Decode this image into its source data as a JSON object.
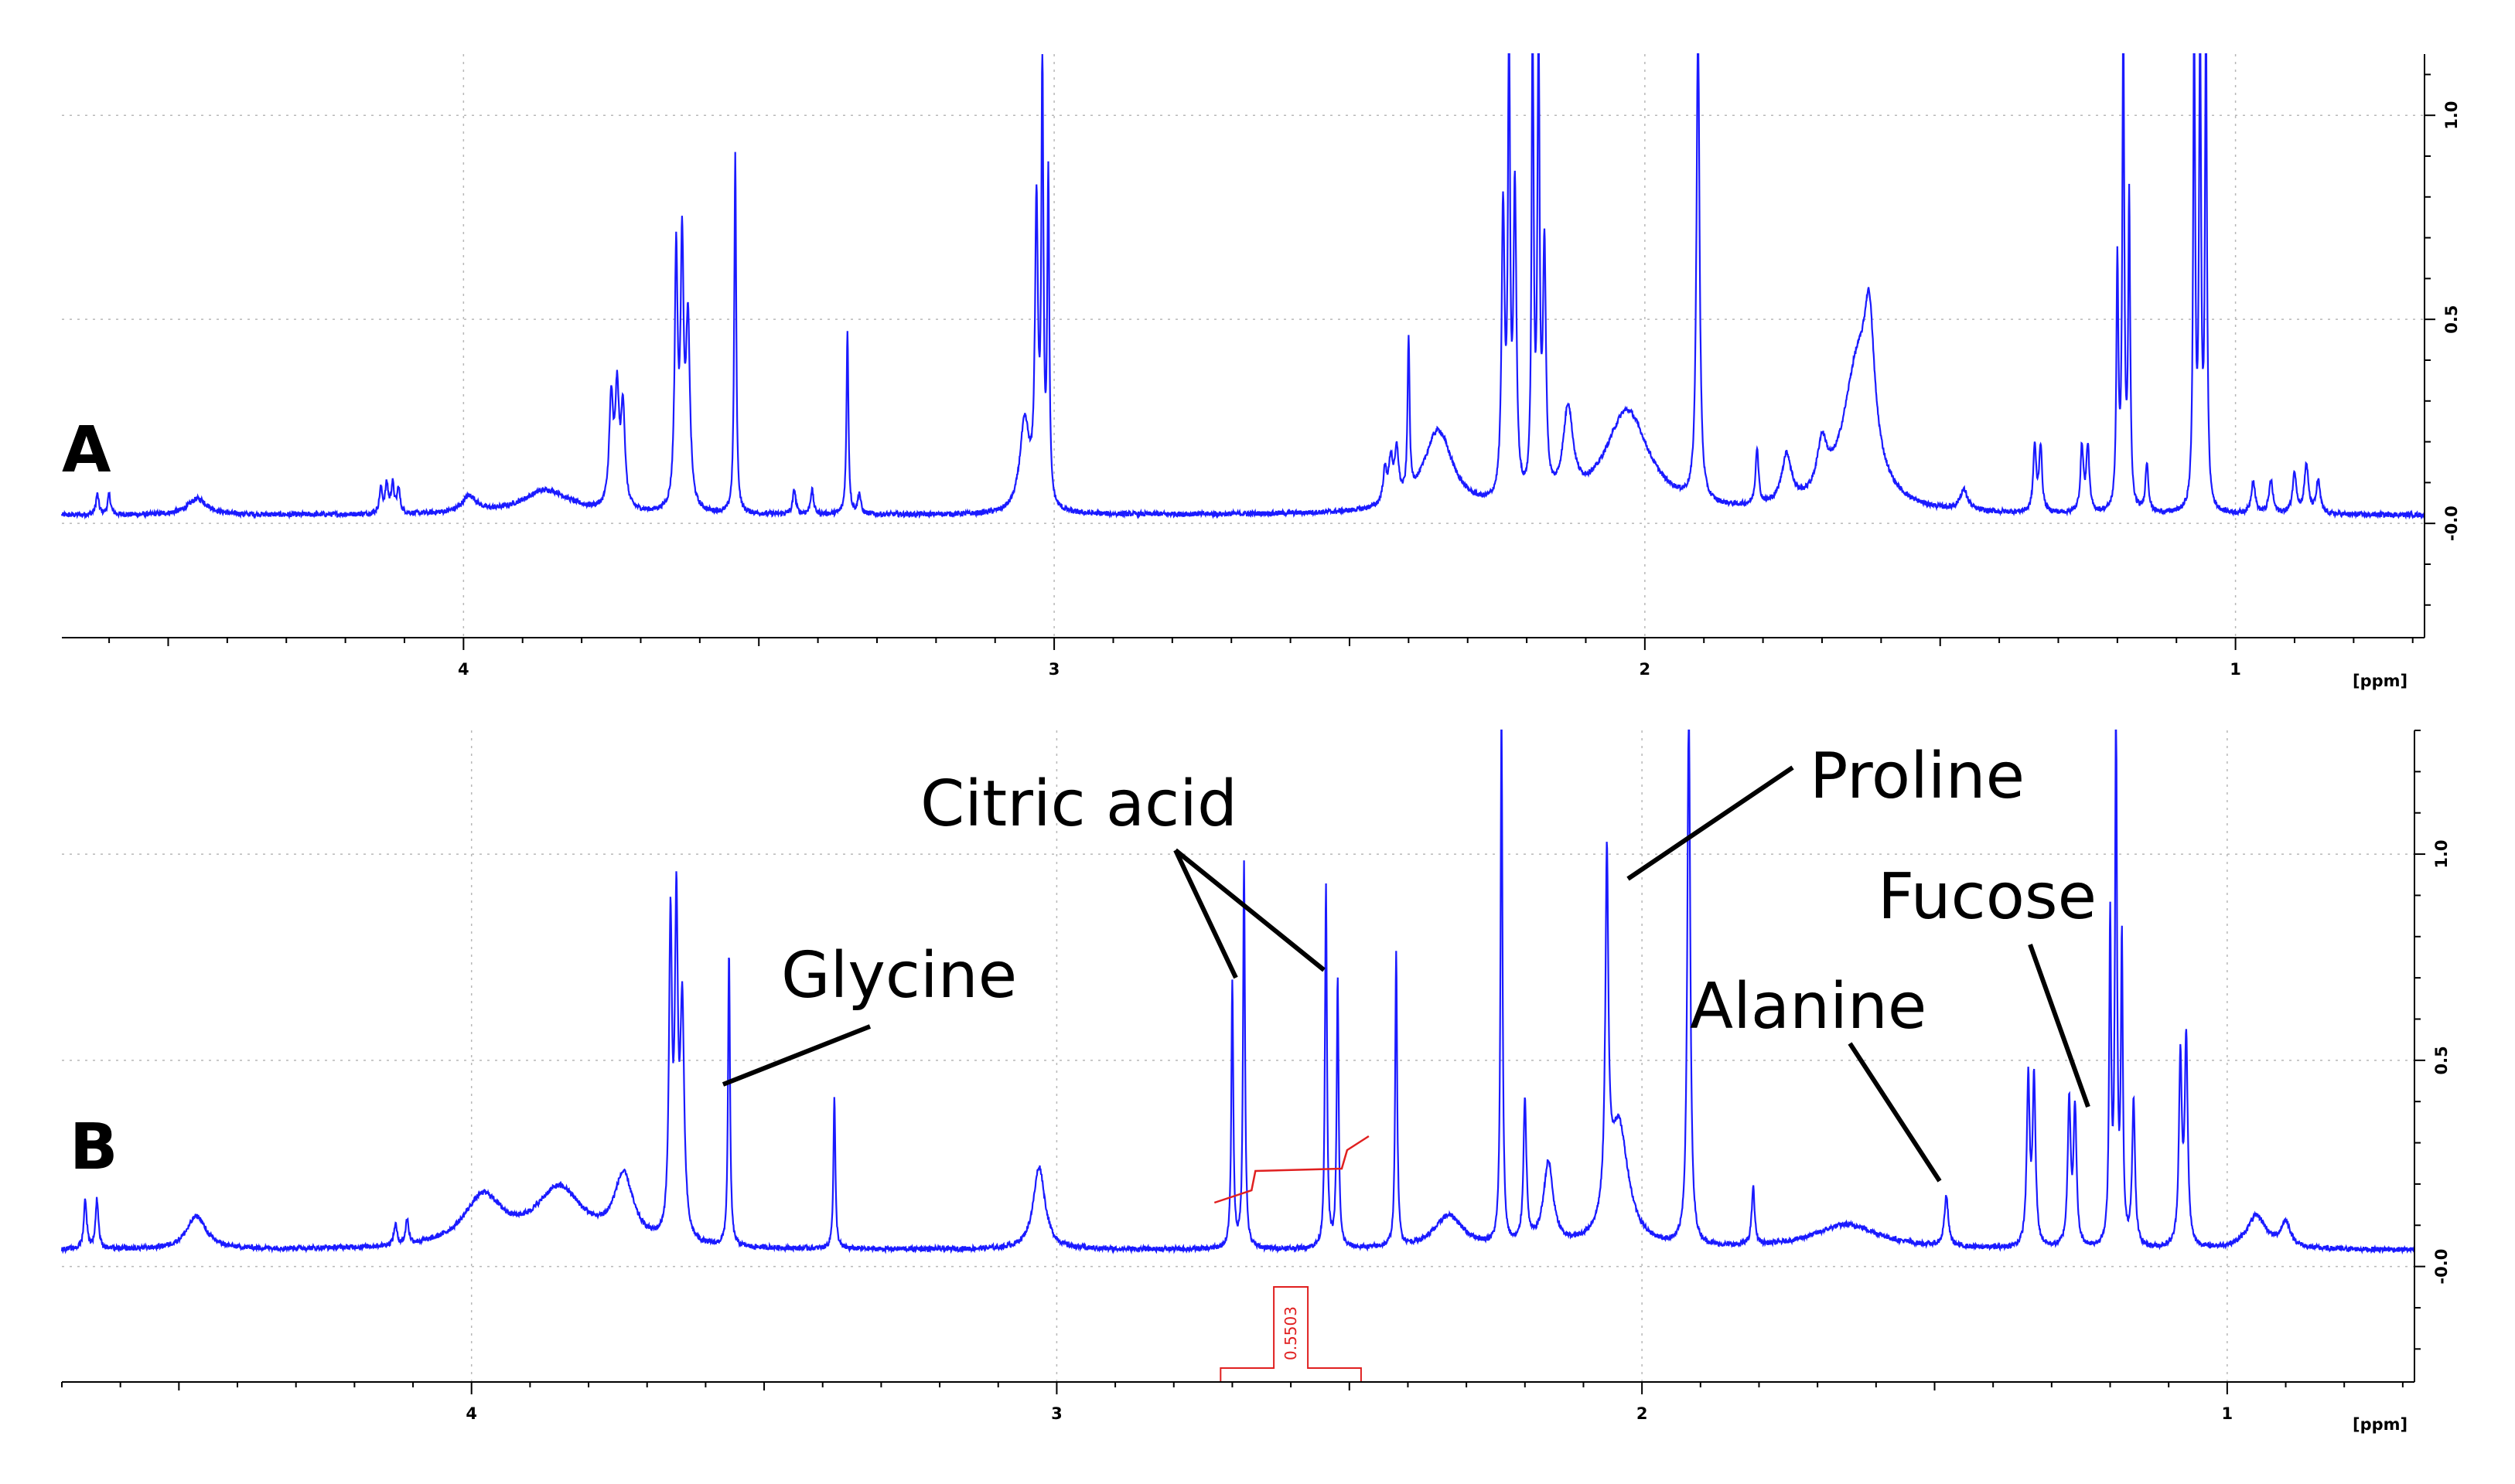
{
  "chart_data": [
    {
      "type": "line",
      "panel_label": "A",
      "xlabel": "[ppm]",
      "x_reversed": true,
      "xlim": [
        4.68,
        0.68
      ],
      "ylim": [
        -0.28,
        1.15
      ],
      "x_ticks": [
        "4",
        "3",
        "2",
        "1"
      ],
      "x_tick_values": [
        4,
        3,
        2,
        1
      ],
      "y_ticks": [
        "1.0",
        "0.5",
        "-0.0"
      ],
      "y_tick_values": [
        1.0,
        0.5,
        0.0
      ],
      "grid": true,
      "line_color": "#1a1aff",
      "baseline": 0.02,
      "peaks": [
        {
          "x": 4.62,
          "h": 0.05,
          "w": 0.003
        },
        {
          "x": 4.6,
          "h": 0.05,
          "w": 0.003
        },
        {
          "x": 4.45,
          "h": 0.04,
          "w": 0.02
        },
        {
          "x": 4.14,
          "h": 0.06,
          "w": 0.003
        },
        {
          "x": 4.13,
          "h": 0.07,
          "w": 0.003
        },
        {
          "x": 4.12,
          "h": 0.07,
          "w": 0.003
        },
        {
          "x": 4.11,
          "h": 0.06,
          "w": 0.003
        },
        {
          "x": 3.99,
          "h": 0.04,
          "w": 0.015
        },
        {
          "x": 3.86,
          "h": 0.06,
          "w": 0.05
        },
        {
          "x": 3.75,
          "h": 0.26,
          "w": 0.004
        },
        {
          "x": 3.74,
          "h": 0.27,
          "w": 0.004
        },
        {
          "x": 3.73,
          "h": 0.24,
          "w": 0.004
        },
        {
          "x": 3.64,
          "h": 0.62,
          "w": 0.003
        },
        {
          "x": 3.63,
          "h": 0.62,
          "w": 0.003
        },
        {
          "x": 3.62,
          "h": 0.45,
          "w": 0.004
        },
        {
          "x": 3.54,
          "h": 0.88,
          "w": 0.002
        },
        {
          "x": 3.44,
          "h": 0.06,
          "w": 0.003
        },
        {
          "x": 3.41,
          "h": 0.06,
          "w": 0.003
        },
        {
          "x": 3.35,
          "h": 0.45,
          "w": 0.002
        },
        {
          "x": 3.33,
          "h": 0.05,
          "w": 0.003
        },
        {
          "x": 3.05,
          "h": 0.22,
          "w": 0.01
        },
        {
          "x": 3.03,
          "h": 0.72,
          "w": 0.003
        },
        {
          "x": 3.02,
          "h": 1.08,
          "w": 0.002
        },
        {
          "x": 3.01,
          "h": 0.8,
          "w": 0.002
        },
        {
          "x": 2.44,
          "h": 0.08,
          "w": 0.004
        },
        {
          "x": 2.43,
          "h": 0.1,
          "w": 0.004
        },
        {
          "x": 2.42,
          "h": 0.12,
          "w": 0.004
        },
        {
          "x": 2.4,
          "h": 0.38,
          "w": 0.002
        },
        {
          "x": 2.35,
          "h": 0.2,
          "w": 0.03
        },
        {
          "x": 2.24,
          "h": 0.7,
          "w": 0.003
        },
        {
          "x": 2.23,
          "h": 1.2,
          "w": 0.002
        },
        {
          "x": 2.22,
          "h": 0.75,
          "w": 0.003
        },
        {
          "x": 2.19,
          "h": 1.2,
          "w": 0.002
        },
        {
          "x": 2.18,
          "h": 1.2,
          "w": 0.002
        },
        {
          "x": 2.17,
          "h": 0.6,
          "w": 0.003
        },
        {
          "x": 2.13,
          "h": 0.22,
          "w": 0.01
        },
        {
          "x": 2.03,
          "h": 0.25,
          "w": 0.045
        },
        {
          "x": 1.91,
          "h": 1.2,
          "w": 0.003
        },
        {
          "x": 1.81,
          "h": 0.14,
          "w": 0.003
        },
        {
          "x": 1.76,
          "h": 0.12,
          "w": 0.01
        },
        {
          "x": 1.7,
          "h": 0.12,
          "w": 0.01
        },
        {
          "x": 1.64,
          "h": 0.35,
          "w": 0.03
        },
        {
          "x": 1.62,
          "h": 0.3,
          "w": 0.01
        },
        {
          "x": 1.46,
          "h": 0.05,
          "w": 0.008
        },
        {
          "x": 1.34,
          "h": 0.16,
          "w": 0.003
        },
        {
          "x": 1.33,
          "h": 0.16,
          "w": 0.003
        },
        {
          "x": 1.26,
          "h": 0.16,
          "w": 0.003
        },
        {
          "x": 1.25,
          "h": 0.16,
          "w": 0.003
        },
        {
          "x": 1.2,
          "h": 0.6,
          "w": 0.002
        },
        {
          "x": 1.19,
          "h": 1.2,
          "w": 0.002
        },
        {
          "x": 1.18,
          "h": 0.75,
          "w": 0.002
        },
        {
          "x": 1.15,
          "h": 0.12,
          "w": 0.003
        },
        {
          "x": 1.07,
          "h": 1.2,
          "w": 0.002
        },
        {
          "x": 1.06,
          "h": 1.2,
          "w": 0.002
        },
        {
          "x": 1.05,
          "h": 1.2,
          "w": 0.002
        },
        {
          "x": 0.97,
          "h": 0.08,
          "w": 0.004
        },
        {
          "x": 0.94,
          "h": 0.08,
          "w": 0.004
        },
        {
          "x": 0.9,
          "h": 0.1,
          "w": 0.004
        },
        {
          "x": 0.88,
          "h": 0.12,
          "w": 0.004
        },
        {
          "x": 0.86,
          "h": 0.08,
          "w": 0.004
        }
      ]
    },
    {
      "type": "line",
      "panel_label": "B",
      "xlabel": "[ppm]",
      "x_reversed": true,
      "xlim": [
        4.7,
        0.68
      ],
      "ylim": [
        -0.28,
        1.3
      ],
      "x_ticks": [
        "4",
        "3",
        "2",
        "1"
      ],
      "x_tick_values": [
        4,
        3,
        2,
        1
      ],
      "y_ticks": [
        "1.0",
        "0.5",
        "-0.0"
      ],
      "y_tick_values": [
        1.0,
        0.5,
        0.0
      ],
      "grid": true,
      "line_color": "#1a1aff",
      "baseline": 0.04,
      "peaks": [
        {
          "x": 4.66,
          "h": 0.12,
          "w": 0.003
        },
        {
          "x": 4.64,
          "h": 0.12,
          "w": 0.003
        },
        {
          "x": 4.47,
          "h": 0.08,
          "w": 0.02
        },
        {
          "x": 4.13,
          "h": 0.05,
          "w": 0.003
        },
        {
          "x": 4.11,
          "h": 0.06,
          "w": 0.003
        },
        {
          "x": 3.98,
          "h": 0.12,
          "w": 0.04
        },
        {
          "x": 3.85,
          "h": 0.14,
          "w": 0.05
        },
        {
          "x": 3.74,
          "h": 0.16,
          "w": 0.02
        },
        {
          "x": 3.66,
          "h": 0.75,
          "w": 0.003
        },
        {
          "x": 3.65,
          "h": 0.76,
          "w": 0.003
        },
        {
          "x": 3.64,
          "h": 0.55,
          "w": 0.004
        },
        {
          "x": 3.56,
          "h": 0.72,
          "w": 0.002
        },
        {
          "x": 3.38,
          "h": 0.37,
          "w": 0.002
        },
        {
          "x": 3.03,
          "h": 0.2,
          "w": 0.012
        },
        {
          "x": 2.7,
          "h": 0.65,
          "w": 0.002
        },
        {
          "x": 2.68,
          "h": 0.94,
          "w": 0.002
        },
        {
          "x": 2.54,
          "h": 0.88,
          "w": 0.002
        },
        {
          "x": 2.52,
          "h": 0.65,
          "w": 0.002
        },
        {
          "x": 2.42,
          "h": 0.72,
          "w": 0.002
        },
        {
          "x": 2.33,
          "h": 0.08,
          "w": 0.03
        },
        {
          "x": 2.24,
          "h": 1.3,
          "w": 0.002
        },
        {
          "x": 2.2,
          "h": 0.35,
          "w": 0.003
        },
        {
          "x": 2.16,
          "h": 0.2,
          "w": 0.01
        },
        {
          "x": 2.06,
          "h": 0.84,
          "w": 0.003
        },
        {
          "x": 2.04,
          "h": 0.3,
          "w": 0.02
        },
        {
          "x": 1.92,
          "h": 1.3,
          "w": 0.003
        },
        {
          "x": 1.81,
          "h": 0.14,
          "w": 0.003
        },
        {
          "x": 1.65,
          "h": 0.06,
          "w": 0.07
        },
        {
          "x": 1.48,
          "h": 0.12,
          "w": 0.004
        },
        {
          "x": 1.34,
          "h": 0.4,
          "w": 0.003
        },
        {
          "x": 1.33,
          "h": 0.4,
          "w": 0.003
        },
        {
          "x": 1.27,
          "h": 0.35,
          "w": 0.003
        },
        {
          "x": 1.26,
          "h": 0.33,
          "w": 0.003
        },
        {
          "x": 1.2,
          "h": 0.78,
          "w": 0.002
        },
        {
          "x": 1.19,
          "h": 1.3,
          "w": 0.002
        },
        {
          "x": 1.18,
          "h": 0.72,
          "w": 0.002
        },
        {
          "x": 1.16,
          "h": 0.35,
          "w": 0.003
        },
        {
          "x": 1.08,
          "h": 0.45,
          "w": 0.003
        },
        {
          "x": 1.07,
          "h": 0.5,
          "w": 0.003
        },
        {
          "x": 0.95,
          "h": 0.08,
          "w": 0.02
        },
        {
          "x": 0.9,
          "h": 0.06,
          "w": 0.01
        }
      ],
      "annotations": [
        {
          "text": "Glycine",
          "x": 3.56
        },
        {
          "text": "Citric acid",
          "x": 2.68
        },
        {
          "text": "Proline",
          "x": 2.06
        },
        {
          "text": "Alanine",
          "x": 1.48
        },
        {
          "text": "Fucose",
          "x": 1.27
        }
      ],
      "integral": {
        "label": "0.5503",
        "from": 2.72,
        "to": 2.48
      }
    }
  ]
}
